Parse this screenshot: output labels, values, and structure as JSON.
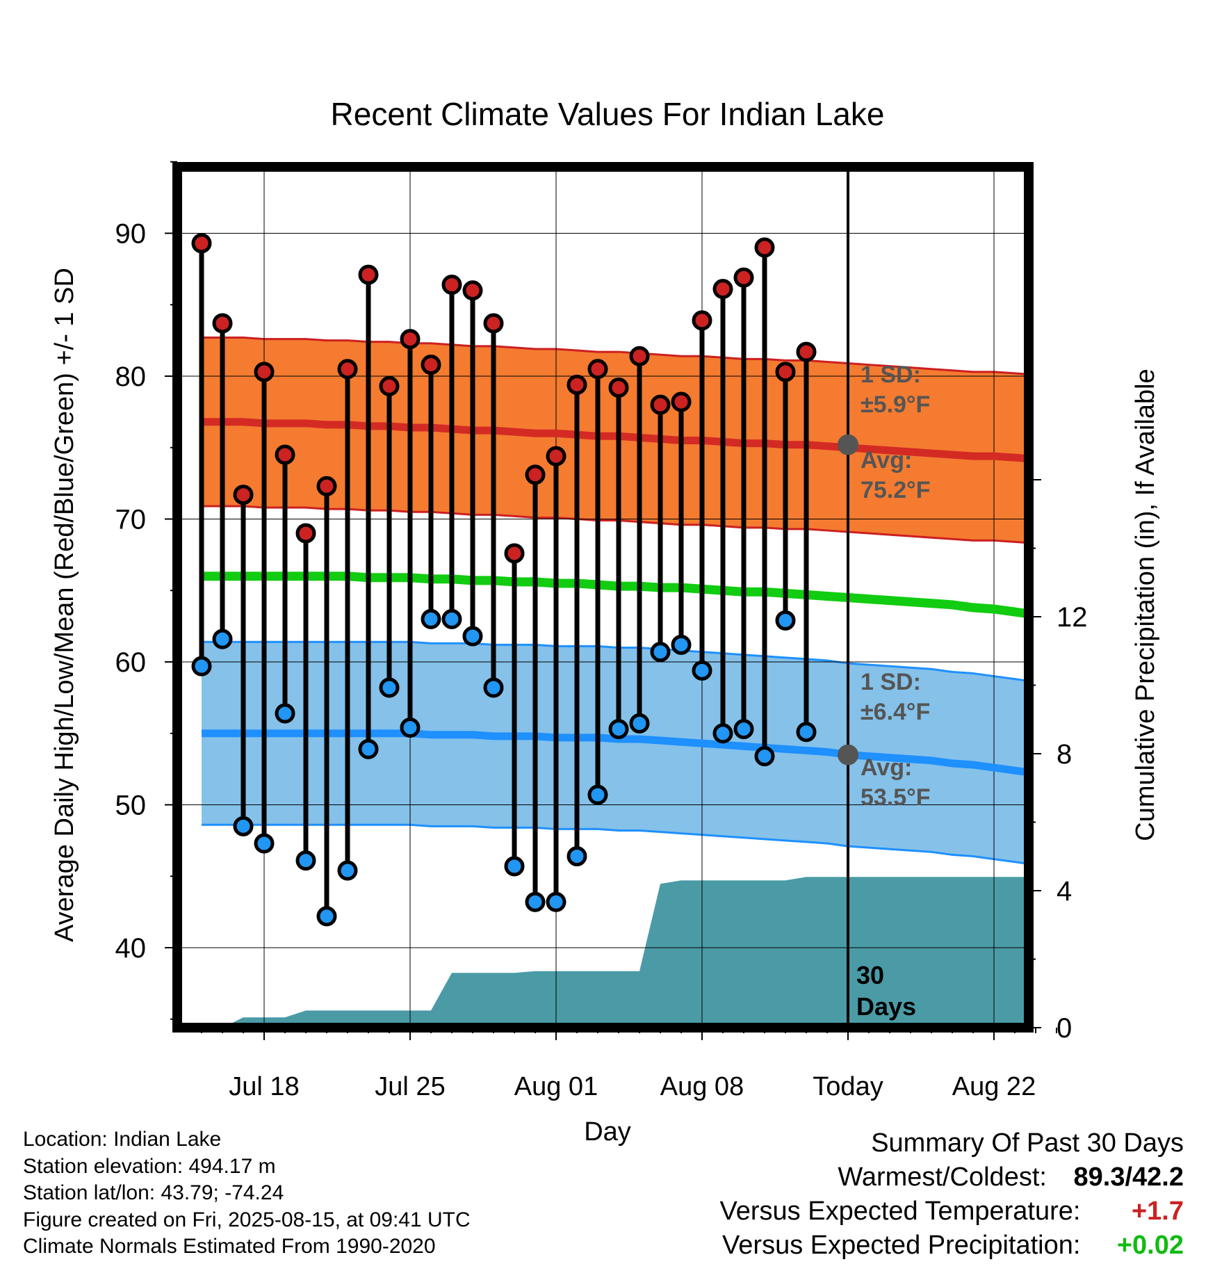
{
  "chart_data": {
    "type": "line",
    "title": "Recent Climate Values For Indian Lake",
    "xlabel": "Day",
    "ylabel_left": "Average Daily High/Low/Mean (Red/Blue/Green) +/- 1 SD",
    "ylabel_right": "Cumulative Precipitation (in), If Available",
    "ylim_left": [
      34.7,
      95.5
    ],
    "ylim_right": [
      0,
      16.0
    ],
    "yticks_left": [
      "90",
      "80",
      "70",
      "60",
      "50",
      "40"
    ],
    "yticks_right": [
      "12",
      "8",
      "4",
      "0"
    ],
    "xticks": [
      "Jul 18",
      "Jul 25",
      "Aug 01",
      "Aug 08",
      "Today",
      "Aug 22"
    ],
    "days": [
      "Jul 15",
      "Jul 16",
      "Jul 17",
      "Jul 18",
      "Jul 19",
      "Jul 20",
      "Jul 21",
      "Jul 22",
      "Jul 23",
      "Jul 24",
      "Jul 25",
      "Jul 26",
      "Jul 27",
      "Jul 28",
      "Jul 29",
      "Jul 30",
      "Jul 31",
      "Aug 01",
      "Aug 02",
      "Aug 03",
      "Aug 04",
      "Aug 05",
      "Aug 06",
      "Aug 07",
      "Aug 08",
      "Aug 09",
      "Aug 10",
      "Aug 11",
      "Aug 12",
      "Aug 13",
      "Aug 14",
      "Aug 15",
      "Aug 16",
      "Aug 17",
      "Aug 18",
      "Aug 19",
      "Aug 20",
      "Aug 21",
      "Aug 22",
      "Aug 23",
      "Aug 24",
      "Aug 25"
    ],
    "series": [
      {
        "name": "Daily High",
        "color": "#cc2222",
        "values": [
          89.3,
          83.7,
          71.7,
          80.3,
          74.5,
          69.0,
          72.3,
          80.5,
          87.1,
          79.3,
          82.6,
          80.8,
          86.4,
          86.0,
          83.7,
          67.6,
          73.1,
          74.4,
          79.4,
          80.5,
          79.2,
          81.4,
          78.0,
          78.2,
          83.9,
          86.1,
          86.9,
          89.0,
          80.3,
          81.7
        ]
      },
      {
        "name": "Daily Low",
        "color": "#2196f3",
        "values": [
          59.7,
          61.6,
          48.5,
          47.3,
          56.4,
          46.1,
          42.2,
          45.4,
          53.9,
          58.2,
          55.4,
          63.0,
          63.0,
          61.8,
          58.2,
          45.7,
          43.2,
          43.2,
          46.4,
          50.7,
          55.3,
          55.7,
          60.7,
          61.2,
          59.4,
          55.0,
          55.3,
          53.4,
          62.9,
          55.1
        ]
      },
      {
        "name": "Normal High",
        "color": "#d42a24",
        "values": [
          76.8,
          76.8,
          76.8,
          76.7,
          76.7,
          76.7,
          76.6,
          76.6,
          76.5,
          76.5,
          76.4,
          76.4,
          76.3,
          76.2,
          76.2,
          76.1,
          76.0,
          76.0,
          75.9,
          75.8,
          75.8,
          75.7,
          75.6,
          75.5,
          75.5,
          75.4,
          75.3,
          75.3,
          75.2,
          75.2,
          75.1,
          75.0,
          74.9,
          74.8,
          74.7,
          74.6,
          74.5,
          74.4,
          74.4,
          74.3,
          74.2,
          74.1
        ]
      },
      {
        "name": "Normal Mean",
        "color": "#11cc11",
        "values": [
          66.0,
          66.0,
          66.0,
          66.0,
          66.0,
          66.0,
          66.0,
          66.0,
          65.9,
          65.9,
          65.9,
          65.8,
          65.8,
          65.7,
          65.7,
          65.6,
          65.6,
          65.5,
          65.5,
          65.4,
          65.3,
          65.3,
          65.2,
          65.2,
          65.1,
          65.0,
          64.9,
          64.9,
          64.8,
          64.7,
          64.6,
          64.5,
          64.4,
          64.3,
          64.2,
          64.1,
          64.0,
          63.8,
          63.7,
          63.5,
          63.3,
          63.1
        ]
      },
      {
        "name": "Normal Low",
        "color": "#1e90ff",
        "values": [
          55.0,
          55.0,
          55.0,
          55.0,
          55.0,
          55.0,
          55.0,
          55.0,
          55.0,
          55.0,
          55.0,
          54.9,
          54.9,
          54.9,
          54.8,
          54.8,
          54.8,
          54.7,
          54.7,
          54.7,
          54.6,
          54.6,
          54.5,
          54.4,
          54.3,
          54.2,
          54.1,
          54.0,
          53.9,
          53.8,
          53.7,
          53.5,
          53.4,
          53.3,
          53.2,
          53.1,
          52.9,
          52.8,
          52.6,
          52.4,
          52.2,
          52.0
        ]
      }
    ],
    "bands": [
      {
        "name": "High +/- 1 SD",
        "color": "#f47b30",
        "sd": 5.9
      },
      {
        "name": "Low +/- 1 SD",
        "color": "#85c1e9",
        "sd": 6.4
      }
    ],
    "precip": {
      "color": "#4a9ba6",
      "values": [
        0.0,
        0.0,
        0.3,
        0.3,
        0.3,
        0.5,
        0.5,
        0.5,
        0.5,
        0.5,
        0.5,
        0.5,
        1.6,
        1.6,
        1.6,
        1.6,
        1.65,
        1.65,
        1.65,
        1.65,
        1.65,
        1.65,
        4.2,
        4.3,
        4.3,
        4.3,
        4.3,
        4.3,
        4.3,
        4.4,
        4.4,
        4.4,
        4.4,
        4.4,
        4.4,
        4.4,
        4.4,
        4.4,
        4.4,
        4.4,
        4.4,
        4.4
      ]
    },
    "annotations": {
      "high_sd": {
        "line1": "1 SD:",
        "line2": "±5.9°F",
        "value": 75.2
      },
      "high_avg": {
        "line1": "Avg:",
        "line2": "75.2°F"
      },
      "low_sd": {
        "line1": "1 SD:",
        "line2": "±6.4°F",
        "value": 53.5
      },
      "low_avg": {
        "line1": "Avg:",
        "line2": "53.5°F"
      },
      "days_line1": "30",
      "days_line2": "Days"
    },
    "grid": true
  },
  "info": {
    "location": "Location: Indian Lake",
    "elevation": "Station elevation: 494.17 m",
    "latlon": "Station lat/lon: 43.79; -74.24",
    "created": "Figure created on Fri, 2025-08-15, at 09:41 UTC",
    "normals": "Climate Normals Estimated From 1990-2020"
  },
  "summary": {
    "title": "Summary Of Past 30 Days",
    "warmest_label": "Warmest/Coldest:",
    "warmest_value": "89.3/42.2",
    "temp_label": "Versus Expected Temperature:",
    "temp_value": "+1.7",
    "temp_color": "#cc2222",
    "precip_label": "Versus Expected Precipitation:",
    "precip_value": "+0.02",
    "precip_color": "#11bb11"
  }
}
